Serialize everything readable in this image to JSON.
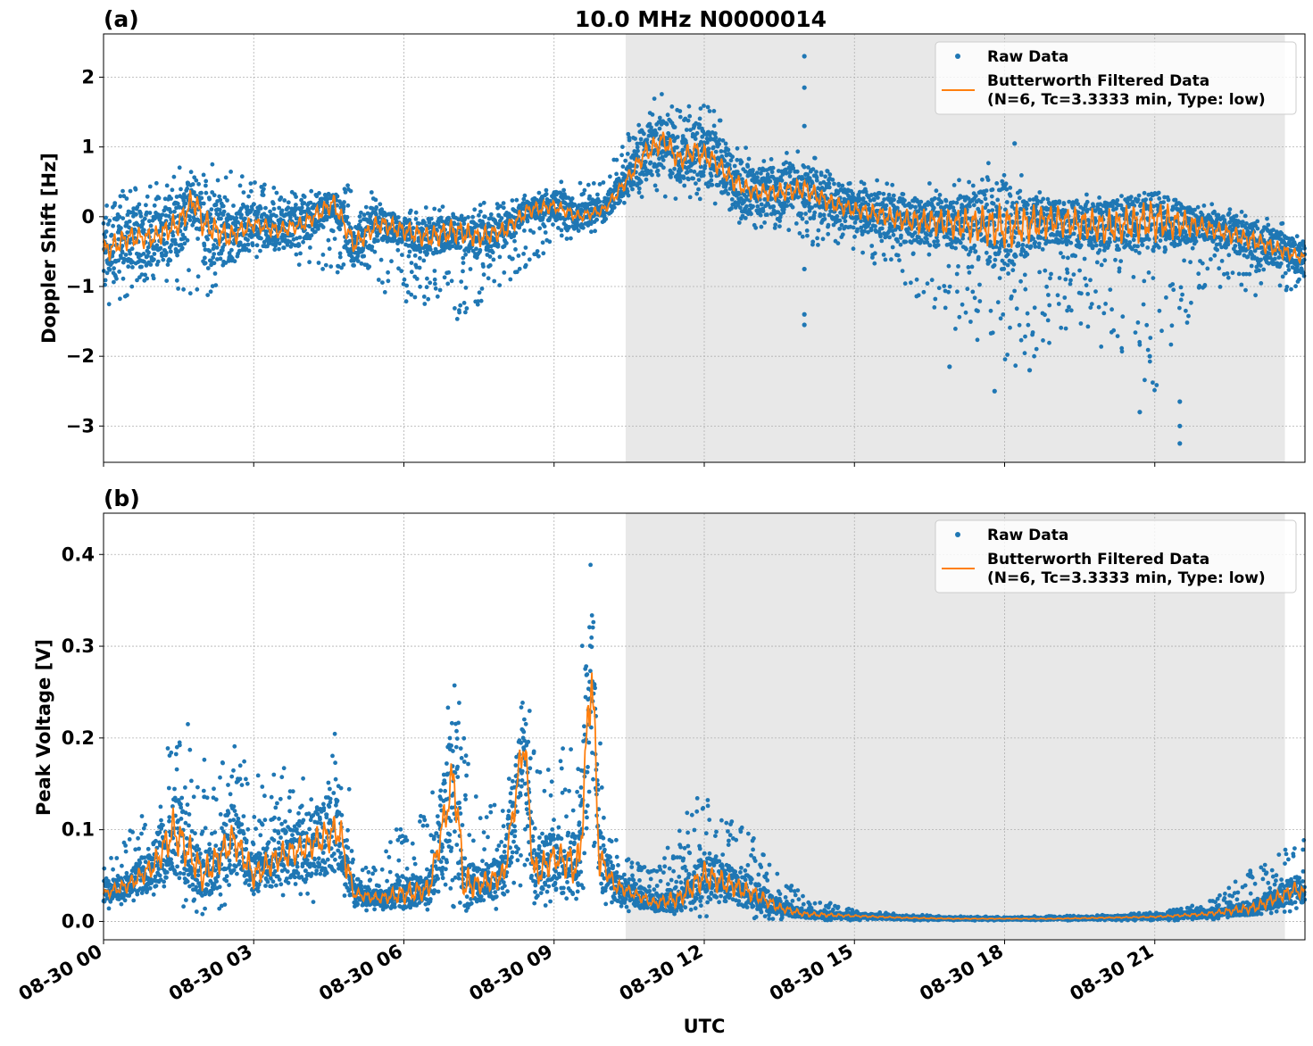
{
  "figure": {
    "title": "10.0 MHz N0000014",
    "xlabel": "UTC",
    "x_tick_labels": [
      "08-30 00",
      "08-30 03",
      "08-30 06",
      "08-30 09",
      "08-30 12",
      "08-30 15",
      "08-30 18",
      "08-30 21"
    ],
    "x_ticks_hours": [
      0,
      3,
      6,
      9,
      12,
      15,
      18,
      21
    ],
    "x_range_hours": [
      0,
      24
    ],
    "shaded_region_hours": [
      10.43,
      23.6
    ],
    "shade_color": "#e8e8e8",
    "raw_color": "#1f77b4",
    "filtered_color": "#ff7f0e"
  },
  "chart_data": [
    {
      "type": "scatter",
      "panel_label": "(a)",
      "ylabel": "Doppler Shift [Hz]",
      "ylim": [
        -3.52,
        2.62
      ],
      "y_ticks": [
        2,
        1,
        0,
        -1,
        -2,
        -3
      ],
      "y_tick_labels": [
        "2",
        "1",
        "0",
        "−1",
        "−2",
        "−3"
      ],
      "grid": true,
      "legend_position": "top-right",
      "legend": {
        "raw_label": "Raw Data",
        "filtered_label_line1": "Butterworth Filtered Data",
        "filtered_label_line2": "(N=6, Tc=3.3333 min, Type: low)"
      },
      "filtered_series": {
        "name": "Butterworth Filtered Data",
        "x_hours": [
          0,
          0.5,
          1,
          1.5,
          1.8,
          2,
          2.5,
          3,
          3.5,
          4,
          4.6,
          5,
          5.5,
          6,
          6.5,
          7,
          7.5,
          8,
          8.5,
          9,
          9.5,
          10,
          10.43,
          10.8,
          11.2,
          11.5,
          11.8,
          12.2,
          12.6,
          13,
          13.5,
          14,
          14.5,
          15,
          16,
          17,
          18,
          19,
          20,
          21,
          22,
          23,
          24
        ],
        "y": [
          -0.5,
          -0.3,
          -0.3,
          -0.1,
          0.25,
          -0.1,
          -0.3,
          -0.1,
          -0.2,
          -0.1,
          0.2,
          -0.4,
          -0.1,
          -0.2,
          -0.3,
          -0.2,
          -0.3,
          -0.2,
          0.1,
          0.15,
          0.0,
          0.1,
          0.5,
          0.9,
          1.1,
          0.8,
          0.95,
          0.8,
          0.5,
          0.35,
          0.35,
          0.4,
          0.2,
          0.1,
          -0.05,
          -0.1,
          -0.15,
          -0.05,
          -0.15,
          -0.05,
          -0.15,
          -0.35,
          -0.6
        ]
      },
      "raw_envelope": {
        "x_hours": [
          0,
          1,
          2,
          3,
          4,
          5,
          6,
          7,
          8,
          9,
          10,
          10.43,
          11,
          12,
          13,
          14,
          15,
          16,
          17,
          18,
          19,
          20,
          21,
          22,
          23,
          24
        ],
        "lower": [
          -1.4,
          -0.9,
          -1.2,
          -0.6,
          -0.7,
          -0.9,
          -1.2,
          -1.5,
          -1.0,
          -0.4,
          -0.2,
          0.2,
          0.3,
          0.2,
          -0.3,
          -0.4,
          -0.5,
          -1.0,
          -1.6,
          -2.3,
          -1.8,
          -1.9,
          -2.6,
          -1.0,
          -1.2,
          -1.0
        ],
        "upper": [
          0.3,
          0.5,
          0.9,
          0.5,
          0.4,
          0.5,
          0.1,
          0.2,
          0.2,
          0.5,
          0.5,
          1.2,
          1.8,
          1.7,
          0.9,
          1.0,
          0.6,
          0.5,
          0.5,
          0.9,
          0.3,
          0.4,
          0.3,
          0.2,
          0.1,
          -0.2
        ]
      },
      "outliers": [
        {
          "x": 14.0,
          "y": 2.3
        },
        {
          "x": 14.0,
          "y": 1.85
        },
        {
          "x": 14.0,
          "y": 1.3
        },
        {
          "x": 14.0,
          "y": -0.75
        },
        {
          "x": 14.0,
          "y": -1.4
        },
        {
          "x": 14.0,
          "y": -1.55
        },
        {
          "x": 18.2,
          "y": 1.05
        },
        {
          "x": 17.8,
          "y": -2.5
        },
        {
          "x": 18.5,
          "y": -2.2
        },
        {
          "x": 16.9,
          "y": -2.15
        },
        {
          "x": 21.5,
          "y": -3.25
        },
        {
          "x": 21.5,
          "y": -3.0
        },
        {
          "x": 21.5,
          "y": -2.65
        },
        {
          "x": 20.7,
          "y": -2.8
        },
        {
          "x": 20.9,
          "y": -2.0
        }
      ]
    },
    {
      "type": "scatter",
      "panel_label": "(b)",
      "ylabel": "Peak Voltage [V]",
      "ylim": [
        -0.02,
        0.445
      ],
      "y_ticks": [
        0.4,
        0.3,
        0.2,
        0.1,
        0.0
      ],
      "y_tick_labels": [
        "0.4",
        "0.3",
        "0.2",
        "0.1",
        "0.0"
      ],
      "grid": true,
      "legend_position": "top-right",
      "legend": {
        "raw_label": "Raw Data",
        "filtered_label_line1": "Butterworth Filtered Data",
        "filtered_label_line2": "(N=6, Tc=3.3333 min, Type: low)"
      },
      "filtered_series": {
        "name": "Butterworth Filtered Data",
        "x_hours": [
          0,
          0.5,
          1,
          1.4,
          2,
          2.6,
          3,
          3.5,
          4,
          4.7,
          5,
          5.5,
          6,
          6.5,
          7.0,
          7.2,
          7.5,
          8,
          8.4,
          8.6,
          9,
          9.5,
          9.75,
          9.9,
          10.2,
          10.6,
          11,
          11.5,
          12,
          12.5,
          13,
          13.5,
          14,
          15,
          16,
          17,
          18,
          19,
          20,
          21,
          22,
          23,
          23.8,
          24
        ],
        "y": [
          0.03,
          0.04,
          0.06,
          0.1,
          0.05,
          0.09,
          0.05,
          0.07,
          0.08,
          0.1,
          0.03,
          0.025,
          0.03,
          0.035,
          0.16,
          0.04,
          0.04,
          0.05,
          0.2,
          0.05,
          0.07,
          0.06,
          0.28,
          0.07,
          0.04,
          0.03,
          0.02,
          0.025,
          0.05,
          0.04,
          0.03,
          0.015,
          0.008,
          0.006,
          0.004,
          0.003,
          0.003,
          0.003,
          0.004,
          0.005,
          0.008,
          0.015,
          0.035,
          0.03
        ]
      },
      "raw_envelope": {
        "x_hours": [
          0,
          0.5,
          1,
          1.4,
          2,
          2.6,
          3,
          3.5,
          4,
          4.8,
          5,
          5.5,
          6,
          6.5,
          7.0,
          7.5,
          8,
          8.4,
          9,
          9.5,
          9.75,
          10,
          10.5,
          11,
          11.5,
          12,
          12.5,
          13,
          13.5,
          14,
          15,
          16,
          17,
          18,
          19,
          20,
          21,
          22,
          23,
          24
        ],
        "lower": [
          0.01,
          0.02,
          0.015,
          0.02,
          0.005,
          0.02,
          0.02,
          0.02,
          0.02,
          0.02,
          0.01,
          0.01,
          0.01,
          0.01,
          0.01,
          0.01,
          0.01,
          0.01,
          0.01,
          0.01,
          0.01,
          0.01,
          0.01,
          0.005,
          0.005,
          0.005,
          0.005,
          0.003,
          0.002,
          0.001,
          0.001,
          0.001,
          0.001,
          0.001,
          0.001,
          0.001,
          0.001,
          0.001,
          0.005,
          0.01
        ],
        "upper": [
          0.06,
          0.1,
          0.14,
          0.25,
          0.18,
          0.2,
          0.16,
          0.17,
          0.16,
          0.23,
          0.07,
          0.06,
          0.12,
          0.12,
          0.28,
          0.12,
          0.14,
          0.25,
          0.15,
          0.26,
          0.42,
          0.12,
          0.07,
          0.06,
          0.1,
          0.16,
          0.12,
          0.09,
          0.05,
          0.03,
          0.012,
          0.008,
          0.006,
          0.005,
          0.006,
          0.007,
          0.01,
          0.02,
          0.06,
          0.09
        ]
      },
      "outliers": []
    }
  ]
}
